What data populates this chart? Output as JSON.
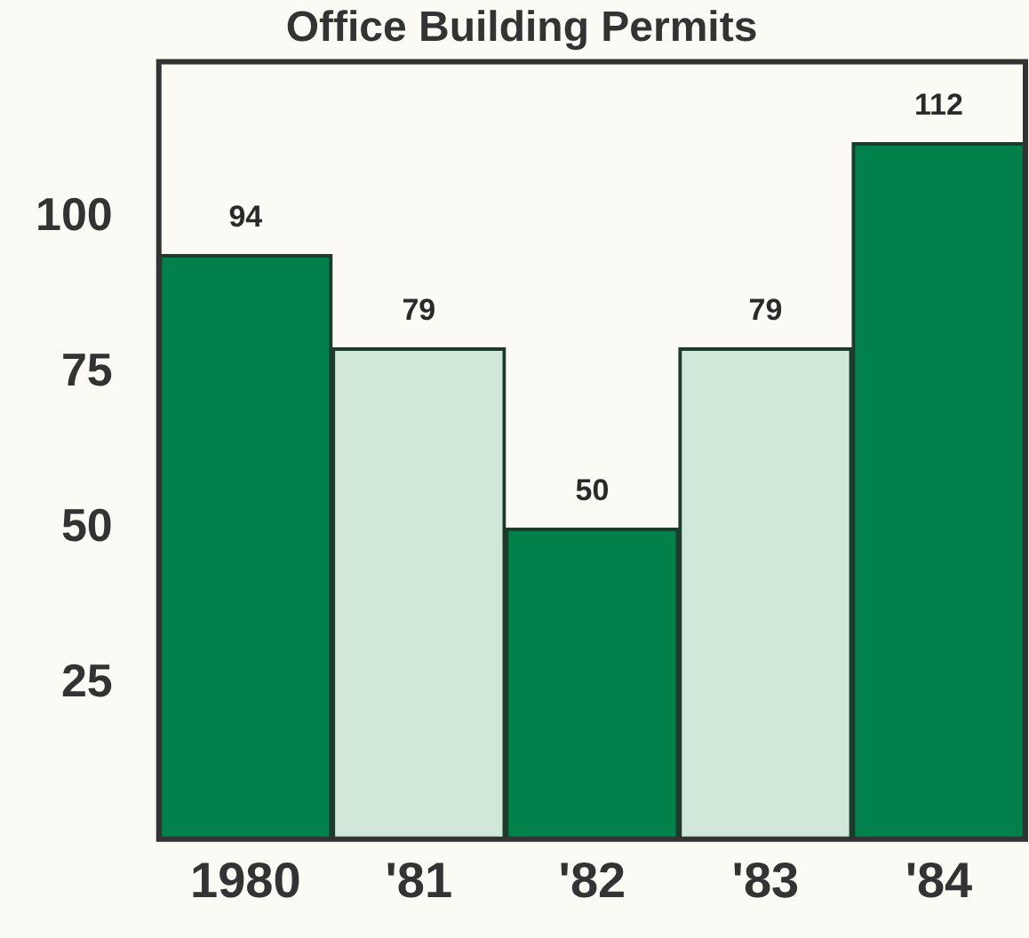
{
  "chart_data": {
    "type": "bar",
    "title": "Office Building Permits",
    "categories": [
      "1980",
      "'81",
      "'82",
      "'83",
      "'84"
    ],
    "values": [
      94,
      79,
      50,
      79,
      112
    ],
    "colors": [
      "#00804a",
      "#cfe8d8",
      "#00804a",
      "#cfe8d8",
      "#00804a"
    ],
    "ylim": [
      0,
      125
    ],
    "yticks": [
      25,
      50,
      75,
      100
    ],
    "grid": false,
    "data_labels": true
  }
}
